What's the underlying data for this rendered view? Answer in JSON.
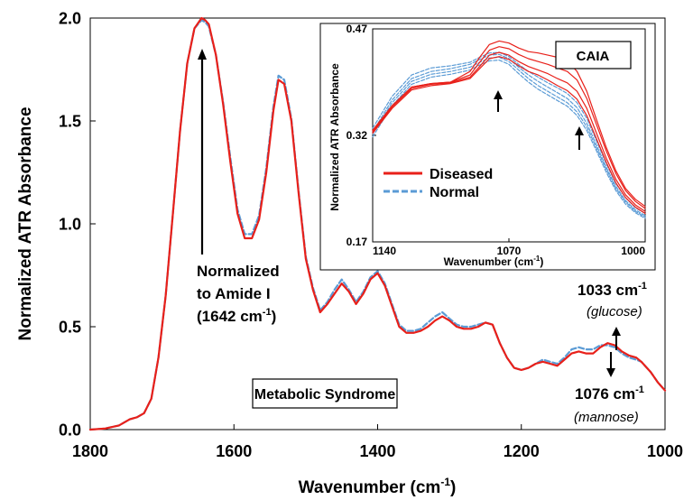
{
  "chart_data": [
    {
      "type": "line",
      "xlabel": "Wavenumber (cm",
      "xlabel_sup": "-1",
      "xlabel_end": ")",
      "ylabel": "Normalized ATR Absorbance",
      "xlim": [
        1800,
        1000
      ],
      "ylim": [
        0.0,
        2.0
      ],
      "x_ticks": [
        "1800",
        "1600",
        "1400",
        "1200",
        "1000"
      ],
      "y_ticks": [
        "0.0",
        "0.5",
        "1.0",
        "1.5",
        "2.0"
      ],
      "grid": false,
      "x": [
        1800,
        1780,
        1760,
        1745,
        1735,
        1725,
        1715,
        1705,
        1695,
        1685,
        1675,
        1665,
        1655,
        1645,
        1640,
        1635,
        1625,
        1615,
        1605,
        1595,
        1585,
        1575,
        1565,
        1555,
        1545,
        1538,
        1530,
        1520,
        1510,
        1500,
        1490,
        1480,
        1470,
        1460,
        1450,
        1440,
        1430,
        1420,
        1410,
        1400,
        1390,
        1380,
        1370,
        1360,
        1350,
        1340,
        1330,
        1320,
        1310,
        1300,
        1290,
        1280,
        1270,
        1260,
        1250,
        1240,
        1230,
        1220,
        1210,
        1200,
        1190,
        1180,
        1170,
        1160,
        1150,
        1140,
        1130,
        1120,
        1110,
        1100,
        1090,
        1080,
        1070,
        1060,
        1050,
        1040,
        1033,
        1020,
        1010,
        1000
      ],
      "series": [
        {
          "color": "#e8201a",
          "style": "solid",
          "values": [
            0.0,
            0.005,
            0.02,
            0.05,
            0.06,
            0.08,
            0.15,
            0.35,
            0.65,
            1.05,
            1.45,
            1.78,
            1.95,
            2.0,
            1.99,
            1.97,
            1.82,
            1.58,
            1.3,
            1.05,
            0.93,
            0.93,
            1.02,
            1.25,
            1.55,
            1.7,
            1.68,
            1.5,
            1.15,
            0.83,
            0.68,
            0.57,
            0.61,
            0.66,
            0.71,
            0.67,
            0.61,
            0.66,
            0.73,
            0.76,
            0.7,
            0.6,
            0.5,
            0.47,
            0.47,
            0.48,
            0.5,
            0.53,
            0.55,
            0.53,
            0.5,
            0.49,
            0.49,
            0.5,
            0.52,
            0.51,
            0.42,
            0.35,
            0.3,
            0.29,
            0.3,
            0.32,
            0.33,
            0.32,
            0.31,
            0.34,
            0.37,
            0.38,
            0.37,
            0.37,
            0.4,
            0.42,
            0.41,
            0.38,
            0.36,
            0.35,
            0.33,
            0.28,
            0.23,
            0.19
          ]
        },
        {
          "color": "#5b9bd5",
          "style": "dashed",
          "values": [
            0.0,
            0.005,
            0.02,
            0.05,
            0.06,
            0.08,
            0.15,
            0.35,
            0.65,
            1.05,
            1.45,
            1.78,
            1.95,
            1.99,
            1.98,
            1.96,
            1.82,
            1.59,
            1.32,
            1.07,
            0.95,
            0.95,
            1.04,
            1.27,
            1.57,
            1.72,
            1.7,
            1.51,
            1.16,
            0.84,
            0.69,
            0.58,
            0.62,
            0.68,
            0.73,
            0.68,
            0.62,
            0.67,
            0.74,
            0.77,
            0.71,
            0.61,
            0.51,
            0.48,
            0.48,
            0.49,
            0.52,
            0.55,
            0.57,
            0.54,
            0.51,
            0.5,
            0.5,
            0.51,
            0.52,
            0.51,
            0.42,
            0.35,
            0.3,
            0.29,
            0.3,
            0.32,
            0.34,
            0.33,
            0.32,
            0.35,
            0.39,
            0.4,
            0.39,
            0.39,
            0.41,
            0.41,
            0.4,
            0.37,
            0.35,
            0.34,
            0.33,
            0.28,
            0.23,
            0.19
          ]
        }
      ],
      "annotations": {
        "amide_label": [
          "Normalized",
          "to Amide I",
          "(1642 cm",
          "-1",
          ")"
        ],
        "glucose_label": [
          "1033 cm",
          "-1",
          "(glucose)"
        ],
        "mannose_label": [
          "1076 cm",
          "-1",
          "(mannose)"
        ],
        "box_label": "Metabolic Syndrome"
      }
    },
    {
      "type": "line",
      "inset": true,
      "title": "CAIA",
      "xlabel": "Wavenumber (cm",
      "xlabel_sup": "-1",
      "xlabel_end": ")",
      "ylabel": "Normalized ATR Absorbance",
      "xlim": [
        1140,
        1000
      ],
      "ylim": [
        0.17,
        0.47
      ],
      "x_ticks": [
        "1140",
        "1070",
        "1000"
      ],
      "y_ticks": [
        "0.17",
        "0.32",
        "0.47"
      ],
      "legend": {
        "placement": "left",
        "entries": [
          {
            "label": "Diseased",
            "color": "#e8201a",
            "style": "solid"
          },
          {
            "label": "Normal",
            "color": "#5b9bd5",
            "style": "dashed"
          }
        ]
      },
      "x": [
        1140,
        1130,
        1120,
        1110,
        1100,
        1090,
        1085,
        1080,
        1075,
        1070,
        1065,
        1060,
        1055,
        1050,
        1045,
        1040,
        1035,
        1030,
        1025,
        1020,
        1015,
        1010,
        1005,
        1000
      ],
      "series": [
        {
          "color": "#e8201a",
          "style": "solid",
          "values": [
            0.327,
            0.362,
            0.388,
            0.393,
            0.395,
            0.41,
            0.43,
            0.448,
            0.453,
            0.45,
            0.443,
            0.438,
            0.436,
            0.433,
            0.43,
            0.425,
            0.41,
            0.382,
            0.342,
            0.303,
            0.27,
            0.245,
            0.23,
            0.22
          ]
        },
        {
          "color": "#e8201a",
          "style": "solid",
          "values": [
            0.327,
            0.362,
            0.388,
            0.393,
            0.395,
            0.405,
            0.423,
            0.44,
            0.445,
            0.442,
            0.434,
            0.428,
            0.424,
            0.42,
            0.415,
            0.41,
            0.398,
            0.372,
            0.335,
            0.298,
            0.266,
            0.242,
            0.227,
            0.217
          ]
        },
        {
          "color": "#e8201a",
          "style": "solid",
          "values": [
            0.325,
            0.36,
            0.386,
            0.392,
            0.394,
            0.402,
            0.417,
            0.433,
            0.437,
            0.433,
            0.424,
            0.417,
            0.412,
            0.407,
            0.4,
            0.394,
            0.382,
            0.358,
            0.323,
            0.288,
            0.258,
            0.236,
            0.222,
            0.213
          ]
        },
        {
          "color": "#e8201a",
          "style": "solid",
          "values": [
            0.323,
            0.358,
            0.384,
            0.39,
            0.393,
            0.4,
            0.414,
            0.428,
            0.431,
            0.427,
            0.418,
            0.41,
            0.405,
            0.398,
            0.39,
            0.383,
            0.371,
            0.348,
            0.315,
            0.282,
            0.253,
            0.232,
            0.219,
            0.21
          ]
        },
        {
          "color": "#5b9bd5",
          "style": "dashed",
          "values": [
            0.33,
            0.375,
            0.405,
            0.415,
            0.418,
            0.423,
            0.43,
            0.436,
            0.437,
            0.431,
            0.42,
            0.41,
            0.402,
            0.394,
            0.387,
            0.379,
            0.366,
            0.344,
            0.312,
            0.28,
            0.252,
            0.232,
            0.218,
            0.21
          ]
        },
        {
          "color": "#5b9bd5",
          "style": "dashed",
          "values": [
            0.325,
            0.37,
            0.4,
            0.41,
            0.414,
            0.42,
            0.427,
            0.433,
            0.434,
            0.428,
            0.416,
            0.405,
            0.396,
            0.388,
            0.38,
            0.372,
            0.359,
            0.337,
            0.306,
            0.275,
            0.248,
            0.228,
            0.215,
            0.207
          ]
        },
        {
          "color": "#5b9bd5",
          "style": "dashed",
          "values": [
            0.322,
            0.366,
            0.396,
            0.406,
            0.41,
            0.416,
            0.423,
            0.429,
            0.43,
            0.424,
            0.412,
            0.4,
            0.39,
            0.382,
            0.374,
            0.366,
            0.353,
            0.332,
            0.302,
            0.272,
            0.245,
            0.226,
            0.213,
            0.205
          ]
        },
        {
          "color": "#5b9bd5",
          "style": "dashed",
          "values": [
            0.318,
            0.362,
            0.392,
            0.402,
            0.406,
            0.412,
            0.419,
            0.425,
            0.426,
            0.42,
            0.407,
            0.395,
            0.385,
            0.377,
            0.369,
            0.361,
            0.348,
            0.327,
            0.298,
            0.268,
            0.242,
            0.223,
            0.211,
            0.203
          ]
        }
      ]
    }
  ]
}
